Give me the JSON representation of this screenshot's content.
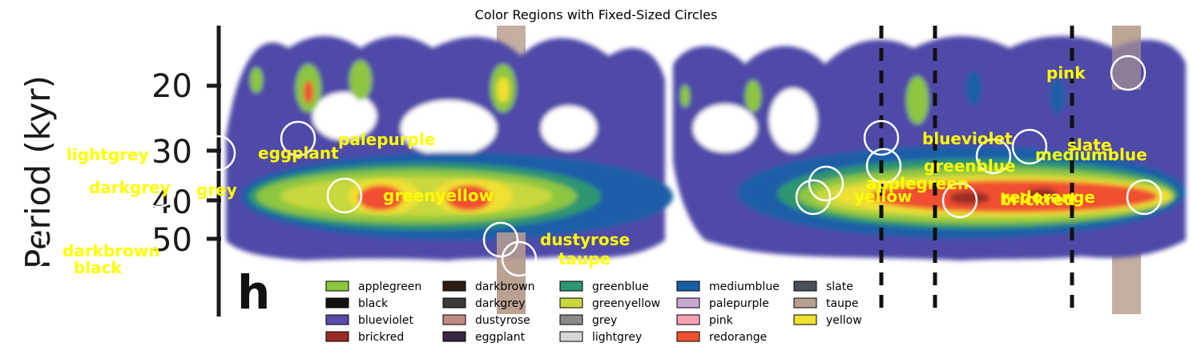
{
  "chart_data": {
    "type": "heatmap",
    "title": "Color Regions with Fixed-Sized Circles",
    "ylabel": "Period (kyr)",
    "y_ticks": [
      "20",
      "30",
      "40",
      "50"
    ],
    "panel_letter": "h",
    "region_labels": [
      {
        "name": "pink",
        "text": "pink"
      },
      {
        "name": "palepurple",
        "text": "palepurple"
      },
      {
        "name": "blueviolet",
        "text": "blueviolet"
      },
      {
        "name": "slate",
        "text": "slate"
      },
      {
        "name": "lightgrey",
        "text": "lightgrey"
      },
      {
        "name": "eggplant",
        "text": "eggplant"
      },
      {
        "name": "mediumblue",
        "text": "mediumblue"
      },
      {
        "name": "greenblue",
        "text": "greenblue"
      },
      {
        "name": "applegreen",
        "text": "applegreen"
      },
      {
        "name": "darkgrey",
        "text": "darkgrey"
      },
      {
        "name": "grey",
        "text": "grey"
      },
      {
        "name": "greenyellow",
        "text": "greenyellow"
      },
      {
        "name": "yellow",
        "text": "yellow"
      },
      {
        "name": "redorange",
        "text": "redorange"
      },
      {
        "name": "brickred",
        "text": "brickred"
      },
      {
        "name": "dustyrose",
        "text": "dustyrose"
      },
      {
        "name": "taupe",
        "text": "taupe"
      },
      {
        "name": "darkbrown",
        "text": "darkbrown"
      },
      {
        "name": "black",
        "text": "black"
      }
    ],
    "legend": [
      {
        "label": "applegreen",
        "color": "#8dc63f"
      },
      {
        "label": "black",
        "color": "#111111"
      },
      {
        "label": "blueviolet",
        "color": "#5b4aa8"
      },
      {
        "label": "brickred",
        "color": "#9b2d26"
      },
      {
        "label": "darkbrown",
        "color": "#2b1d14"
      },
      {
        "label": "darkgrey",
        "color": "#3a3a3a"
      },
      {
        "label": "dustyrose",
        "color": "#c08a84"
      },
      {
        "label": "eggplant",
        "color": "#3a2740"
      },
      {
        "label": "greenblue",
        "color": "#2e9670"
      },
      {
        "label": "greenyellow",
        "color": "#c8d83c"
      },
      {
        "label": "grey",
        "color": "#8a8a8a"
      },
      {
        "label": "lightgrey",
        "color": "#d6d6d6"
      },
      {
        "label": "mediumblue",
        "color": "#1a5ea8"
      },
      {
        "label": "palepurple",
        "color": "#c8a8d0"
      },
      {
        "label": "pink",
        "color": "#f7a0b8"
      },
      {
        "label": "redorange",
        "color": "#f05030"
      },
      {
        "label": "slate",
        "color": "#4a5058"
      },
      {
        "label": "taupe",
        "color": "#b8a090"
      },
      {
        "label": "yellow",
        "color": "#f0e030"
      }
    ]
  }
}
